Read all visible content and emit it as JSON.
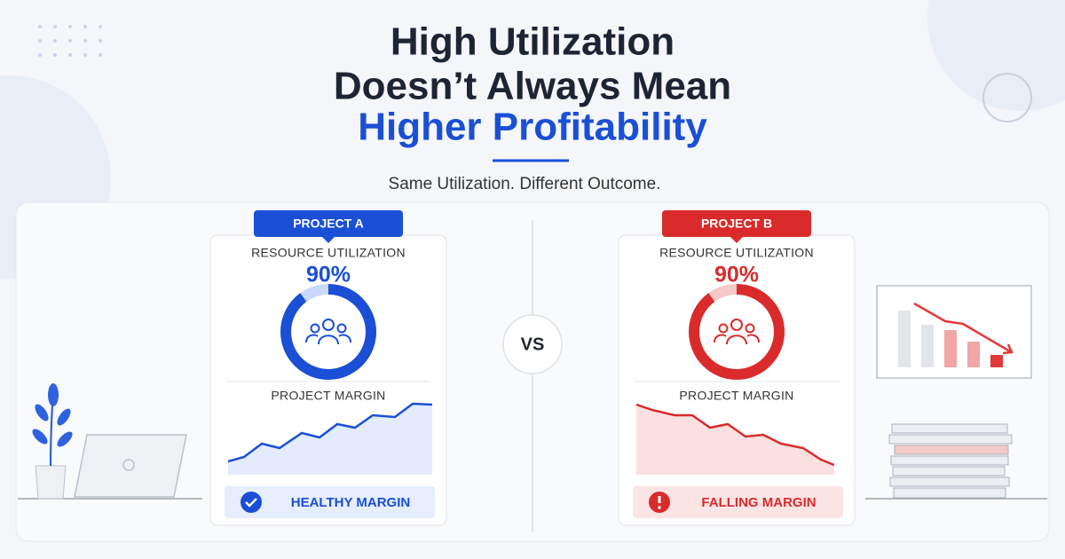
{
  "header": {
    "title_lines": [
      "High Utilization",
      "Doesn’t Always Mean",
      "Higher Profitability"
    ],
    "subtitle": "Same Utilization. Different Outcome."
  },
  "projects": [
    {
      "badge": "PROJECT A",
      "utilization_label": "RESOURCE UTILIZATION",
      "utilization": 90,
      "utilization_text": "90%",
      "margin_label": "PROJECT MARGIN",
      "status": "HEALTHY MARGIN"
    },
    {
      "badge": "PROJECT B",
      "utilization_label": "RESOURCE UTILIZATION",
      "utilization": 90,
      "utilization_text": "90%",
      "margin_label": "PROJECT MARGIN",
      "status": "FALLING MARGIN"
    }
  ],
  "versus": "VS"
}
